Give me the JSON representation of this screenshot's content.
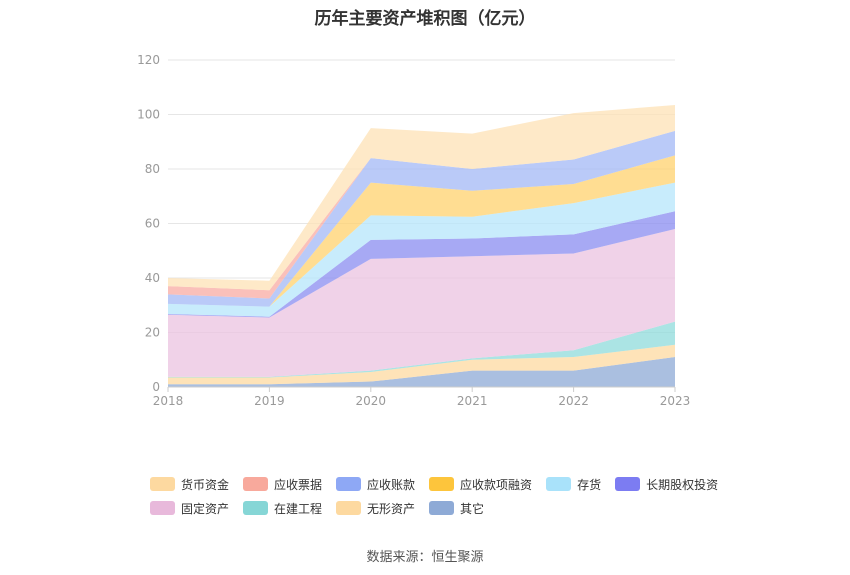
{
  "title": "历年主要资产堆积图（亿元）",
  "source": "数据来源：恒生聚源",
  "chart_data": {
    "type": "area",
    "stacked": true,
    "x": [
      "2018",
      "2019",
      "2020",
      "2021",
      "2022",
      "2023"
    ],
    "ylim": [
      0,
      120
    ],
    "yticks": [
      0,
      20,
      40,
      60,
      80,
      100,
      120
    ],
    "grid": true,
    "legend_position": "bottom",
    "series": [
      {
        "name": "其它",
        "color": "#8eaad6",
        "values": [
          1.0,
          1.0,
          2.0,
          6.0,
          6.0,
          11.0
        ]
      },
      {
        "name": "无形资产",
        "color": "#fdd9a0",
        "values": [
          2.5,
          2.5,
          3.5,
          4.0,
          5.0,
          4.5
        ]
      },
      {
        "name": "在建工程",
        "color": "#8fdbdb",
        "values": [
          0.2,
          0.2,
          0.5,
          0.5,
          2.5,
          8.5
        ]
      },
      {
        "name": "固定资产",
        "color": "#ebc3e0",
        "values": [
          22.8,
          21.8,
          41.0,
          37.5,
          35.5,
          34.0
        ]
      },
      {
        "name": "长期股权投资",
        "color": "#8a8cf0",
        "values": [
          0.3,
          0.3,
          7.0,
          6.5,
          7.0,
          6.5
        ]
      },
      {
        "name": "存货",
        "color": "#b6e6fb",
        "values": [
          3.7,
          3.7,
          9.0,
          8.0,
          11.5,
          10.5
        ]
      },
      {
        "name": "应收款项融资",
        "color": "#ffd26e",
        "values": [
          0.0,
          0.0,
          12.0,
          9.5,
          7.0,
          10.0
        ]
      },
      {
        "name": "应收账款",
        "color": "#a3b8f6",
        "values": [
          3.5,
          3.0,
          9.0,
          8.0,
          9.0,
          9.0
        ]
      },
      {
        "name": "应收票据",
        "color": "#f8aba3",
        "values": [
          3.0,
          3.0,
          0.0,
          0.0,
          0.0,
          0.0
        ]
      },
      {
        "name": "货币资金",
        "color": "#fde2b5",
        "values": [
          3.0,
          3.5,
          11.0,
          13.0,
          17.0,
          9.5
        ]
      }
    ]
  },
  "legend": [
    [
      {
        "name": "货币资金",
        "color": "#fdd9a0"
      },
      {
        "name": "应收票据",
        "color": "#f8a99c"
      },
      {
        "name": "应收账款",
        "color": "#8ea8f5"
      },
      {
        "name": "应收款项融资",
        "color": "#fdc53c"
      },
      {
        "name": "存货",
        "color": "#a9e2fa"
      },
      {
        "name": "长期股权投资",
        "color": "#7c7cf2"
      }
    ],
    [
      {
        "name": "固定资产",
        "color": "#e8b9db"
      },
      {
        "name": "在建工程",
        "color": "#86d6d6"
      },
      {
        "name": "无形资产",
        "color": "#fdd9a0"
      },
      {
        "name": "其它",
        "color": "#8eaad6"
      }
    ]
  ]
}
